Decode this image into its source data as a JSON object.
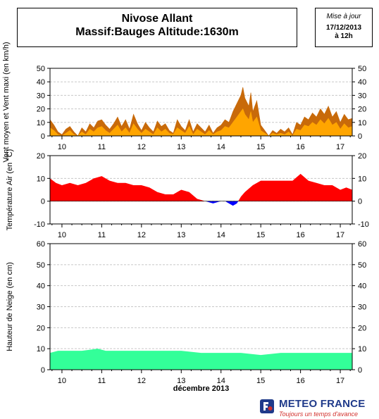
{
  "header": {
    "title_line1": "Nivose Allant",
    "title_line2": "Massif:Bauges Altitude:1630m",
    "update_label": "Mise à jour",
    "update_date": "17/12/2013",
    "update_time": "à 12h"
  },
  "footer": {
    "brand": "METEO FRANCE",
    "slogan": "Toujours un temps d'avance",
    "logo_icon": "meteo-france-logo-icon"
  },
  "chart_data": [
    {
      "type": "area",
      "title": "",
      "ylabel": "Vent moyen et Vent maxi (en km/h)",
      "xlabel": "",
      "ylim": [
        0,
        50
      ],
      "yticks": [
        0,
        10,
        20,
        30,
        40,
        50
      ],
      "xlim": [
        9.7,
        17.3
      ],
      "xticks": [
        10,
        11,
        12,
        13,
        14,
        15,
        16,
        17
      ],
      "grid": true,
      "x": [
        9.7,
        9.8,
        9.9,
        10.0,
        10.1,
        10.2,
        10.3,
        10.4,
        10.5,
        10.6,
        10.7,
        10.8,
        10.9,
        11.0,
        11.1,
        11.2,
        11.3,
        11.4,
        11.5,
        11.6,
        11.7,
        11.8,
        11.9,
        12.0,
        12.1,
        12.2,
        12.3,
        12.4,
        12.5,
        12.6,
        12.7,
        12.8,
        12.9,
        13.0,
        13.1,
        13.2,
        13.3,
        13.4,
        13.5,
        13.6,
        13.7,
        13.8,
        13.9,
        14.0,
        14.1,
        14.2,
        14.3,
        14.4,
        14.5,
        14.55,
        14.6,
        14.7,
        14.75,
        14.8,
        14.9,
        15.0,
        15.1,
        15.2,
        15.3,
        15.4,
        15.5,
        15.6,
        15.7,
        15.8,
        15.9,
        16.0,
        16.1,
        16.2,
        16.3,
        16.4,
        16.5,
        16.6,
        16.7,
        16.8,
        16.9,
        17.0,
        17.1,
        17.2,
        17.3
      ],
      "series": [
        {
          "name": "",
          "color": "#c86a0a",
          "values": [
            12,
            8,
            3,
            1,
            5,
            7,
            3,
            0,
            6,
            3,
            9,
            6,
            11,
            12,
            8,
            5,
            9,
            14,
            7,
            12,
            5,
            16,
            9,
            4,
            10,
            6,
            3,
            11,
            7,
            9,
            4,
            2,
            12,
            7,
            4,
            12,
            3,
            9,
            6,
            3,
            8,
            2,
            6,
            8,
            12,
            10,
            18,
            24,
            30,
            36,
            28,
            22,
            32,
            18,
            26,
            8,
            4,
            0,
            4,
            2,
            5,
            3,
            6,
            1,
            10,
            8,
            14,
            12,
            17,
            14,
            20,
            16,
            22,
            14,
            18,
            10,
            16,
            12,
            13
          ]
        },
        {
          "name": "",
          "color": "#ffa500",
          "values": [
            6,
            4,
            1,
            0,
            2,
            4,
            1,
            0,
            3,
            1,
            5,
            3,
            6,
            7,
            4,
            2,
            5,
            8,
            3,
            6,
            2,
            9,
            5,
            2,
            5,
            3,
            1,
            6,
            3,
            5,
            2,
            1,
            6,
            4,
            2,
            7,
            1,
            5,
            3,
            1,
            4,
            1,
            3,
            4,
            7,
            6,
            10,
            14,
            18,
            20,
            16,
            12,
            18,
            10,
            14,
            4,
            2,
            0,
            2,
            1,
            2,
            1,
            3,
            0,
            5,
            4,
            8,
            7,
            10,
            8,
            12,
            9,
            13,
            8,
            10,
            5,
            9,
            6,
            7
          ]
        }
      ]
    },
    {
      "type": "area",
      "title": "",
      "ylabel": "Température Air (en °C)",
      "xlabel": "",
      "ylim": [
        -10,
        20
      ],
      "yticks": [
        -10,
        0,
        10,
        20
      ],
      "xlim": [
        9.7,
        17.3
      ],
      "xticks": [
        10,
        11,
        12,
        13,
        14,
        15,
        16,
        17
      ],
      "grid": true,
      "positive_color": "#ff0000",
      "negative_color": "#0000ff",
      "x": [
        9.7,
        9.85,
        10.0,
        10.2,
        10.4,
        10.6,
        10.8,
        11.0,
        11.2,
        11.4,
        11.6,
        11.8,
        12.0,
        12.2,
        12.4,
        12.6,
        12.8,
        13.0,
        13.2,
        13.4,
        13.6,
        13.8,
        14.0,
        14.1,
        14.2,
        14.3,
        14.4,
        14.5,
        14.6,
        14.8,
        15.0,
        15.2,
        15.4,
        15.6,
        15.8,
        16.0,
        16.2,
        16.4,
        16.6,
        16.8,
        17.0,
        17.15,
        17.3
      ],
      "values": [
        10,
        8,
        7,
        8,
        7,
        8,
        10,
        11,
        9,
        8,
        8,
        7,
        7,
        6,
        4,
        3,
        3,
        5,
        4,
        1,
        0,
        -1,
        0,
        0,
        -1,
        -2,
        -1,
        2,
        4,
        7,
        9,
        9,
        9,
        9,
        9,
        12,
        9,
        8,
        7,
        7,
        5,
        6,
        5
      ]
    },
    {
      "type": "area",
      "title": "",
      "ylabel": "Hauteur de Neige (en cm)",
      "xlabel": "décembre 2013",
      "ylim": [
        0,
        60
      ],
      "yticks": [
        0,
        10,
        20,
        30,
        40,
        50,
        60
      ],
      "xlim": [
        9.7,
        17.3
      ],
      "xticks": [
        10,
        11,
        12,
        13,
        14,
        15,
        16,
        17
      ],
      "grid": true,
      "color": "#33ff99",
      "x": [
        9.7,
        9.9,
        10.0,
        10.5,
        10.9,
        11.1,
        11.5,
        12.0,
        12.5,
        13.0,
        13.5,
        14.0,
        14.5,
        15.0,
        15.5,
        16.0,
        16.5,
        17.0,
        17.3
      ],
      "values": [
        8,
        9,
        9,
        9,
        10,
        9,
        9,
        9,
        9,
        9,
        8,
        8,
        8,
        7,
        8,
        8,
        8,
        8,
        8
      ]
    }
  ]
}
